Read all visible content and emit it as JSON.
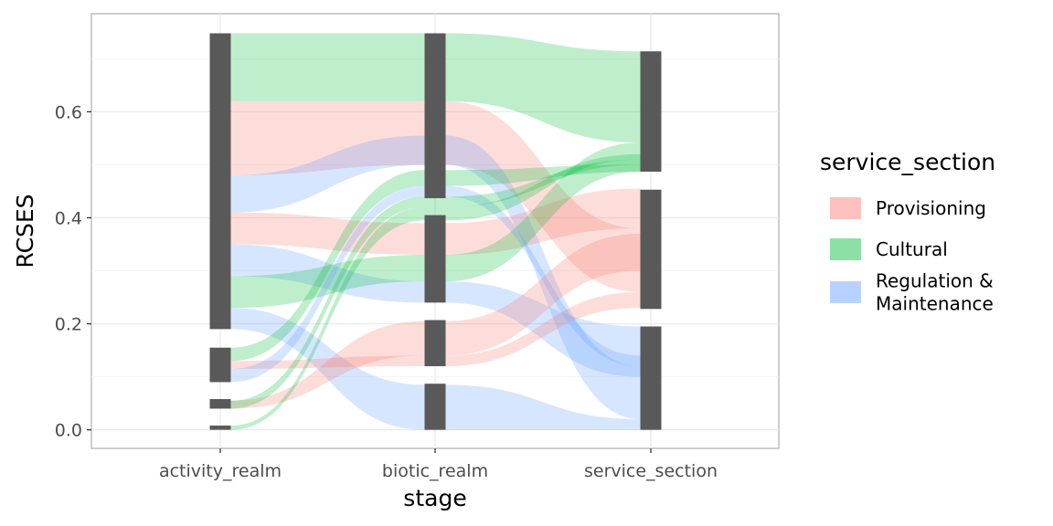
{
  "chart_data": {
    "type": "alluvial",
    "xlabel": "stage",
    "ylabel": "RCSES",
    "axes": [
      "activity_realm",
      "biotic_realm",
      "service_section"
    ],
    "ylim": [
      -0.035,
      0.785
    ],
    "y_ticks": [
      0.0,
      0.2,
      0.4,
      0.6
    ],
    "y_tick_labels": [
      "0.0",
      "0.2",
      "0.4",
      "0.6"
    ],
    "grid": true,
    "legend": {
      "title": "service_section",
      "position": "right",
      "entries": [
        {
          "key": "Provisioning",
          "label": "Provisioning",
          "color": "#F8766D"
        },
        {
          "key": "Cultural",
          "label": "Cultural",
          "color": "#00BA38"
        },
        {
          "key": "Regulation & Maintenance",
          "label_lines": [
            "Regulation &",
            "Maintenance"
          ],
          "color": "#619CFF"
        }
      ]
    },
    "flows": [
      {
        "service": "Cultural",
        "y": [
          [
            0.62,
            0.748
          ],
          [
            0.62,
            0.748
          ],
          [
            0.542,
            0.714
          ]
        ]
      },
      {
        "service": "Provisioning",
        "y": [
          [
            0.48,
            0.62
          ],
          [
            0.5,
            0.62
          ],
          [
            0.26,
            0.38
          ]
        ]
      },
      {
        "service": "Regulation & Maintenance",
        "y": [
          [
            0.41,
            0.48
          ],
          [
            0.5,
            0.555
          ],
          [
            0.02,
            0.12
          ]
        ]
      },
      {
        "service": "Provisioning",
        "y": [
          [
            0.35,
            0.41
          ],
          [
            0.33,
            0.39
          ],
          [
            0.38,
            0.455
          ]
        ]
      },
      {
        "service": "Regulation & Maintenance",
        "y": [
          [
            0.29,
            0.35
          ],
          [
            0.24,
            0.28
          ],
          [
            0.1,
            0.195
          ]
        ]
      },
      {
        "service": "Cultural",
        "y": [
          [
            0.23,
            0.29
          ],
          [
            0.28,
            0.33
          ],
          [
            0.487,
            0.542
          ]
        ]
      },
      {
        "service": "Regulation & Maintenance",
        "y": [
          [
            0.19,
            0.23
          ],
          [
            0.0,
            0.085
          ],
          [
            0.0,
            0.02
          ]
        ]
      },
      {
        "service": "Provisioning",
        "y": [
          [
            0.115,
            0.13
          ],
          [
            0.12,
            0.14
          ],
          [
            0.23,
            0.26
          ]
        ]
      },
      {
        "service": "Cultural",
        "y": [
          [
            0.13,
            0.155
          ],
          [
            0.46,
            0.49
          ],
          [
            0.487,
            0.5
          ]
        ]
      },
      {
        "service": "Regulation & Maintenance",
        "y": [
          [
            0.09,
            0.115
          ],
          [
            0.44,
            0.46
          ],
          [
            0.12,
            0.14
          ]
        ]
      },
      {
        "service": "Provisioning",
        "y": [
          [
            0.04,
            0.055
          ],
          [
            0.14,
            0.205
          ],
          [
            0.3,
            0.37
          ]
        ]
      },
      {
        "service": "Cultural",
        "y": [
          [
            0.04,
            0.055
          ],
          [
            0.42,
            0.44
          ],
          [
            0.5,
            0.51
          ]
        ]
      },
      {
        "service": "Cultural",
        "y": [
          [
            0.0,
            0.008
          ],
          [
            0.395,
            0.42
          ],
          [
            0.51,
            0.52
          ]
        ]
      }
    ],
    "stratum_blocks": [
      {
        "axis": "activity_realm",
        "y": [
          0.19,
          0.748
        ]
      },
      {
        "axis": "activity_realm",
        "y": [
          0.09,
          0.155
        ]
      },
      {
        "axis": "activity_realm",
        "y": [
          0.04,
          0.058
        ]
      },
      {
        "axis": "activity_realm",
        "y": [
          0.0,
          0.008
        ]
      },
      {
        "axis": "biotic_realm",
        "y": [
          0.437,
          0.748
        ]
      },
      {
        "axis": "biotic_realm",
        "y": [
          0.24,
          0.405
        ]
      },
      {
        "axis": "biotic_realm",
        "y": [
          0.12,
          0.207
        ]
      },
      {
        "axis": "biotic_realm",
        "y": [
          0.0,
          0.087
        ]
      },
      {
        "axis": "service_section",
        "y": [
          0.487,
          0.714
        ]
      },
      {
        "axis": "service_section",
        "y": [
          0.228,
          0.453
        ]
      },
      {
        "axis": "service_section",
        "y": [
          0.0,
          0.195
        ]
      }
    ]
  }
}
